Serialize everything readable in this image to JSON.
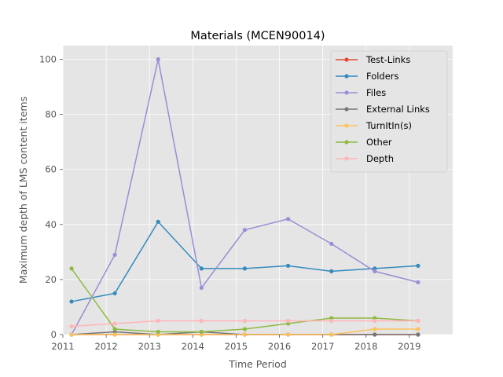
{
  "chart_data": {
    "type": "line",
    "title": "Materials (MCEN90014)",
    "xlabel": "Time Period",
    "ylabel": "Maximum depth of LMS content items",
    "xlim": [
      2011,
      2020
    ],
    "ylim": [
      0,
      105
    ],
    "xticks": [
      "2011",
      "2012",
      "2013",
      "2014",
      "2015",
      "2016",
      "2017",
      "2018",
      "2019"
    ],
    "yticks": [
      "0",
      "20",
      "40",
      "60",
      "80",
      "100"
    ],
    "grid": true,
    "legend_position": "top-right",
    "x": [
      2011.2,
      2012.2,
      2013.2,
      2014.2,
      2015.2,
      2016.2,
      2017.2,
      2018.2,
      2019.2
    ],
    "series": [
      {
        "name": "Test-Links",
        "color": "#E24A33",
        "values": [
          0,
          0,
          0,
          0,
          0,
          0,
          0,
          0,
          0
        ]
      },
      {
        "name": "Folders",
        "color": "#348ABD",
        "values": [
          12,
          15,
          41,
          24,
          24,
          25,
          23,
          24,
          25
        ]
      },
      {
        "name": "Files",
        "color": "#988ED5",
        "values": [
          0,
          29,
          100,
          17,
          38,
          42,
          33,
          23,
          19
        ]
      },
      {
        "name": "External Links",
        "color": "#777777",
        "values": [
          0,
          1,
          0,
          1,
          0,
          0,
          0,
          0,
          0
        ]
      },
      {
        "name": "TurnItIn(s)",
        "color": "#FBC15E",
        "values": [
          0,
          0,
          0,
          0,
          0,
          0,
          0,
          2,
          2
        ]
      },
      {
        "name": "Other",
        "color": "#8EBA42",
        "values": [
          24,
          2,
          1,
          1,
          2,
          4,
          6,
          6,
          5
        ]
      },
      {
        "name": "Depth",
        "color": "#FFB5B8",
        "values": [
          3,
          4,
          5,
          5,
          5,
          5,
          5,
          5,
          5
        ]
      }
    ]
  }
}
